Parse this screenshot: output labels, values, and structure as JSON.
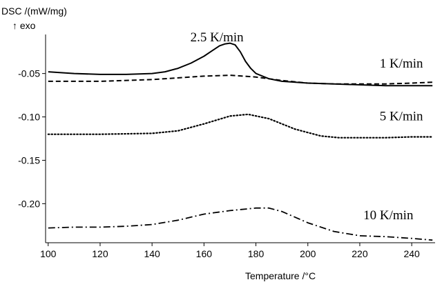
{
  "chart_data": {
    "type": "line",
    "ylabel": "DSC /(mW/mg)",
    "ylabel_sub": "↑ exo",
    "xlabel": "Temperature /°C",
    "xlim": [
      99,
      249
    ],
    "ylim": [
      -0.245,
      -0.005
    ],
    "grid": false,
    "x_ticks": [
      {
        "value": 100,
        "label": "100"
      },
      {
        "value": 120,
        "label": "120"
      },
      {
        "value": 140,
        "label": "140"
      },
      {
        "value": 160,
        "label": "160"
      },
      {
        "value": 180,
        "label": "180"
      },
      {
        "value": 200,
        "label": "200"
      },
      {
        "value": 220,
        "label": "220"
      },
      {
        "value": 240,
        "label": "240"
      }
    ],
    "y_ticks": [
      {
        "value": -0.05,
        "label": "-0.05"
      },
      {
        "value": -0.1,
        "label": "-0.10"
      },
      {
        "value": -0.15,
        "label": "-0.15"
      },
      {
        "value": -0.2,
        "label": "-0.20"
      }
    ],
    "series": [
      {
        "name": "2.5 K/min",
        "label_x": 165,
        "label_y": -0.013,
        "style": "solid",
        "color": "#000000",
        "x": [
          100,
          110,
          120,
          130,
          140,
          145,
          150,
          155,
          160,
          163,
          166,
          168,
          170,
          172,
          174,
          176,
          178,
          180,
          185,
          190,
          200,
          210,
          220,
          230,
          240,
          248
        ],
        "y": [
          -0.048,
          -0.05,
          -0.051,
          -0.051,
          -0.05,
          -0.048,
          -0.044,
          -0.038,
          -0.03,
          -0.024,
          -0.018,
          -0.016,
          -0.015,
          -0.017,
          -0.025,
          -0.036,
          -0.044,
          -0.05,
          -0.056,
          -0.059,
          -0.061,
          -0.062,
          -0.063,
          -0.064,
          -0.064,
          -0.064
        ]
      },
      {
        "name": "1 K/min",
        "label_x": 236,
        "label_y": -0.043,
        "style": "dashed",
        "color": "#000000",
        "x": [
          100,
          120,
          140,
          160,
          170,
          180,
          190,
          200,
          210,
          220,
          230,
          240,
          248
        ],
        "y": [
          -0.059,
          -0.059,
          -0.057,
          -0.053,
          -0.052,
          -0.054,
          -0.058,
          -0.061,
          -0.062,
          -0.062,
          -0.062,
          -0.061,
          -0.06
        ]
      },
      {
        "name": "5 K/min",
        "label_x": 236,
        "label_y": -0.104,
        "style": "dotted",
        "color": "#000000",
        "x": [
          100,
          120,
          140,
          150,
          160,
          170,
          177,
          185,
          195,
          205,
          212,
          220,
          230,
          240,
          248
        ],
        "y": [
          -0.12,
          -0.12,
          -0.119,
          -0.116,
          -0.108,
          -0.099,
          -0.097,
          -0.102,
          -0.114,
          -0.122,
          -0.124,
          -0.124,
          -0.124,
          -0.123,
          -0.123
        ]
      },
      {
        "name": "10 K/min",
        "label_x": 231,
        "label_y": -0.218,
        "style": "dashdot",
        "color": "#000000",
        "x": [
          100,
          110,
          120,
          130,
          140,
          150,
          160,
          170,
          180,
          185,
          190,
          200,
          210,
          220,
          230,
          240,
          248
        ],
        "y": [
          -0.228,
          -0.227,
          -0.227,
          -0.226,
          -0.224,
          -0.219,
          -0.212,
          -0.208,
          -0.205,
          -0.205,
          -0.209,
          -0.222,
          -0.232,
          -0.237,
          -0.238,
          -0.24,
          -0.242
        ]
      }
    ]
  }
}
